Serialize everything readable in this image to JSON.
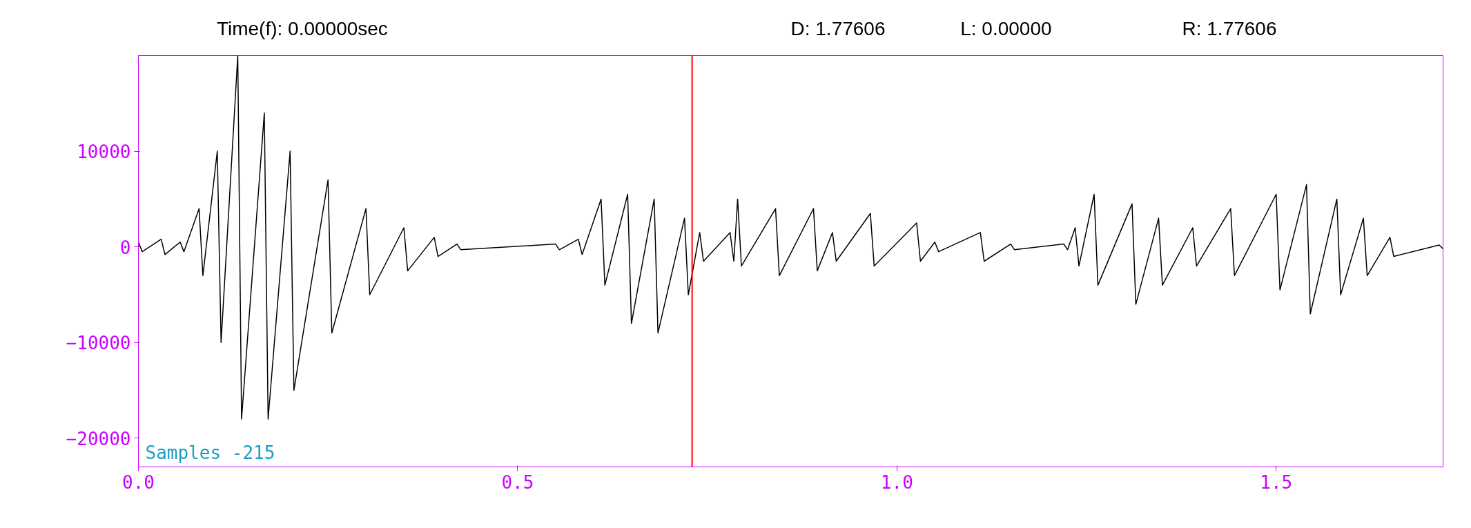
{
  "chart_data": {
    "type": "line",
    "xlim": [
      0,
      1.72
    ],
    "ylim": [
      -23000,
      20000
    ],
    "xticks": [
      {
        "value": 0,
        "label": "0.0"
      },
      0.5,
      {
        "value": 1,
        "label": "1.0"
      },
      1.5
    ],
    "yticks": [
      -20000,
      -10000,
      0,
      10000
    ],
    "ref_lines": [
      {
        "axis": "x",
        "value": 0.73,
        "label": null,
        "color": "#ff0000"
      }
    ],
    "annotations": [
      "Time(f):  0.00000sec",
      "D: 1.77606",
      "L:  0.00000",
      "R:  1.77606",
      "Samples  -215"
    ],
    "grid": false,
    "marker": "none",
    "line_style": "solid",
    "series": [
      {
        "color": "#000000",
        "x": [
          0,
          0.005,
          0.03,
          0.035,
          0.055,
          0.06,
          0.08,
          0.085,
          0.104,
          0.109,
          0.131,
          0.136,
          0.166,
          0.171,
          0.2,
          0.205,
          0.25,
          0.255,
          0.3,
          0.305,
          0.35,
          0.355,
          0.39,
          0.395,
          0.42,
          0.425,
          0.55,
          0.555,
          0.58,
          0.585,
          0.61,
          0.615,
          0.645,
          0.65,
          0.68,
          0.685,
          0.72,
          0.725,
          0.74,
          0.745,
          0.78,
          0.785,
          0.79,
          0.795,
          0.84,
          0.845,
          0.89,
          0.895,
          0.915,
          0.92,
          0.965,
          0.97,
          1.026,
          1.031,
          1.05,
          1.055,
          1.11,
          1.115,
          1.15,
          1.155,
          1.22,
          1.225,
          1.235,
          1.24,
          1.26,
          1.265,
          1.31,
          1.315,
          1.345,
          1.35,
          1.39,
          1.395,
          1.44,
          1.445,
          1.5,
          1.505,
          1.54,
          1.545,
          1.58,
          1.585,
          1.615,
          1.62,
          1.65,
          1.655,
          1.715,
          1.72
        ],
        "values": [
          500,
          -500,
          800,
          -800,
          500,
          -500,
          4000,
          -3000,
          10000,
          -10000,
          20000,
          -18000,
          14000,
          -18000,
          10000,
          -15000,
          7000,
          -9000,
          4000,
          -5000,
          2000,
          -2500,
          1000,
          -1000,
          300,
          -300,
          300,
          -300,
          800,
          -800,
          5000,
          -4000,
          5500,
          -8000,
          5000,
          -9000,
          3000,
          -5000,
          1500,
          -1500,
          1500,
          -1500,
          5000,
          -2000,
          4000,
          -3000,
          4000,
          -2500,
          1500,
          -1500,
          3500,
          -2000,
          2500,
          -1500,
          500,
          -500,
          1500,
          -1500,
          300,
          -300,
          300,
          -300,
          2000,
          -2000,
          5500,
          -4000,
          4500,
          -6000,
          3000,
          -4000,
          2000,
          -2000,
          4000,
          -3000,
          5500,
          -4500,
          6500,
          -7000,
          5000,
          -5000,
          3000,
          -3000,
          1000,
          -1000,
          200,
          -200
        ]
      }
    ]
  }
}
